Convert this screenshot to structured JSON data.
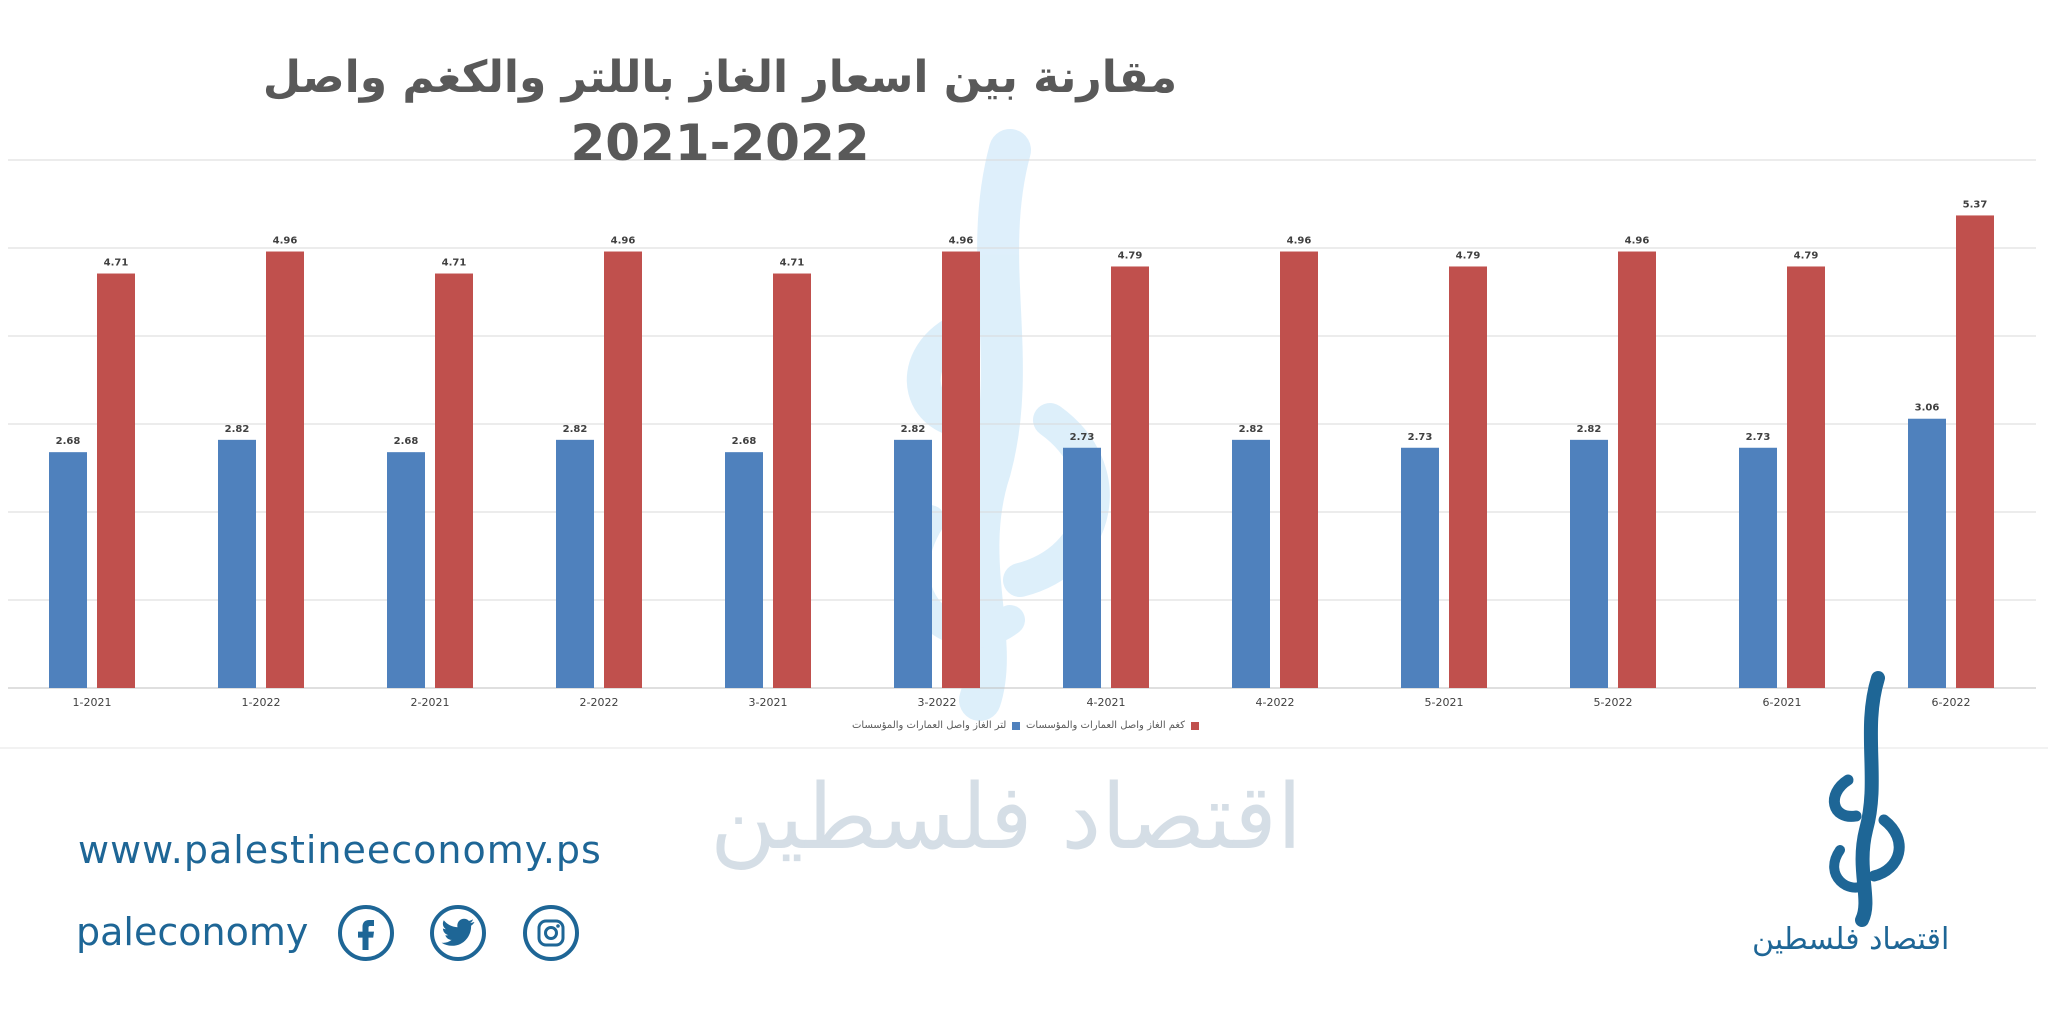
{
  "colors": {
    "series_blue": "#4f81bd",
    "series_red": "#c0504d",
    "brand": "#1e6696",
    "grid": "#d9d9d9"
  },
  "chart_data": {
    "type": "bar",
    "title": "مقارنة بين اسعار الغاز باللتر والكغم واصل",
    "subtitle": "2021-2022",
    "categories": [
      "1-2021",
      "1-2022",
      "2-2021",
      "2-2022",
      "3-2021",
      "3-2022",
      "4-2021",
      "4-2022",
      "5-2021",
      "5-2022",
      "6-2021",
      "6-2022"
    ],
    "series": [
      {
        "name": "لتر الغاز واصل العمارات والمؤسسات",
        "color": "#4f81bd",
        "values": [
          2.68,
          2.82,
          2.68,
          2.82,
          2.68,
          2.82,
          2.73,
          2.82,
          2.73,
          2.82,
          2.73,
          3.06
        ]
      },
      {
        "name": "كغم الغاز واصل العمارات والمؤسسات",
        "color": "#c0504d",
        "values": [
          4.71,
          4.96,
          4.71,
          4.96,
          4.71,
          4.96,
          4.79,
          4.96,
          4.79,
          4.96,
          4.79,
          5.37
        ]
      }
    ],
    "ylim": [
      0,
      6
    ],
    "grid": true,
    "legend": "bottom-center",
    "data_labels": true
  },
  "watermark": {
    "text": "اقتصاد فلسطين"
  },
  "footer": {
    "website": "www.palestineeconomy.ps",
    "handle": "paleconomy",
    "social_icons": [
      "facebook-icon",
      "twitter-icon",
      "instagram-icon"
    ]
  },
  "brand": {
    "name": "اقتصاد فلسطين"
  }
}
